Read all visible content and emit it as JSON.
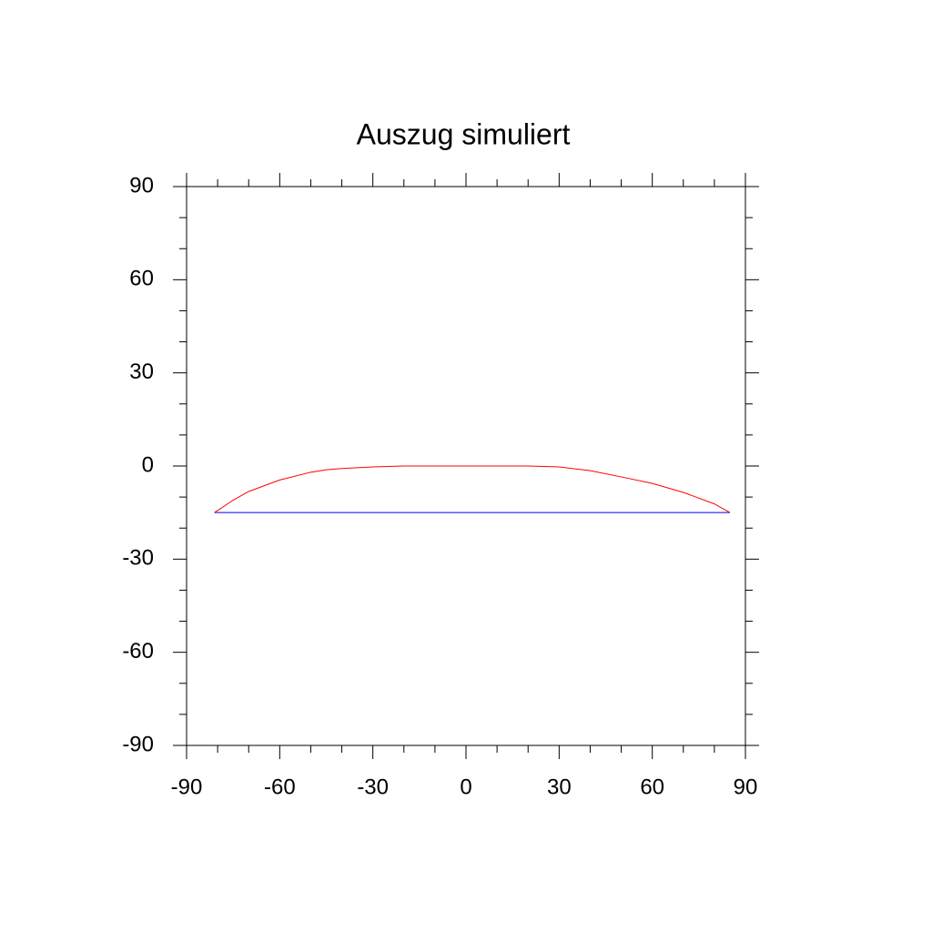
{
  "chart_data": {
    "type": "line",
    "title": "Auszug simuliert",
    "xlim": [
      -90,
      90
    ],
    "ylim": [
      -90,
      90
    ],
    "xticks": [
      -90,
      -60,
      -30,
      0,
      30,
      60,
      90
    ],
    "yticks": [
      -90,
      -60,
      -30,
      0,
      30,
      60,
      90
    ],
    "xminorticks": [
      -80,
      -70,
      -50,
      -40,
      -20,
      -10,
      10,
      20,
      40,
      50,
      70,
      80
    ],
    "yminorticks": [
      -80,
      -70,
      -50,
      -40,
      -20,
      -10,
      10,
      20,
      40,
      50,
      70,
      80
    ],
    "series": [
      {
        "color": "#ff0000",
        "x": [
          -81,
          -75,
          -70,
          -60,
          -50,
          -45,
          -40,
          -30,
          -20,
          -10,
          0,
          10,
          20,
          30,
          40,
          50,
          60,
          70,
          80,
          85
        ],
        "values": [
          -15,
          -11,
          -8.2,
          -4.5,
          -2,
          -1.2,
          -0.8,
          -0.3,
          0,
          0,
          0,
          0,
          0,
          -0.3,
          -1.5,
          -3.5,
          -5.6,
          -8.5,
          -12.2,
          -15
        ]
      },
      {
        "color": "#0000ff",
        "x": [
          -81,
          85
        ],
        "values": [
          -15,
          -15
        ]
      }
    ]
  }
}
